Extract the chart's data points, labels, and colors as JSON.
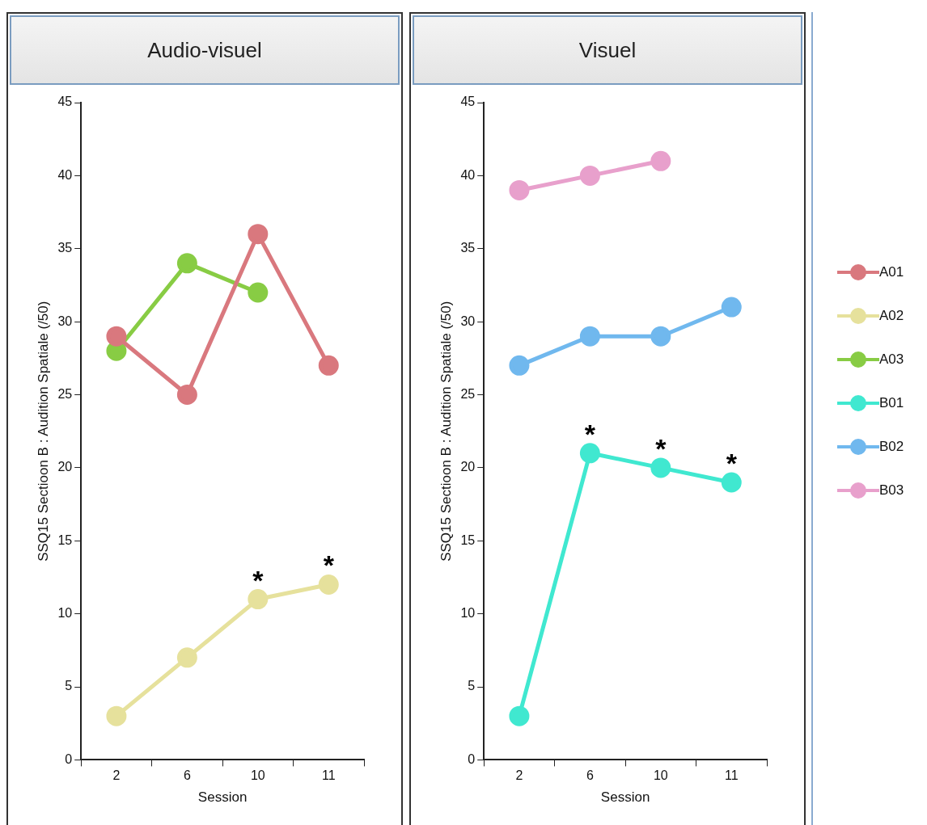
{
  "chart_data": [
    {
      "type": "line",
      "title": "Audio-visuel",
      "categories": [
        "2",
        "6",
        "10",
        "11"
      ],
      "xlabel": "Session",
      "ylabel": "SSQ15 Sectioon B : Audition Spatiale (/50)",
      "ylim": [
        0,
        45
      ],
      "yticks": [
        0,
        5,
        10,
        15,
        20,
        25,
        30,
        35,
        40,
        45
      ],
      "marker": "circle",
      "line_style": "solid",
      "grid": false,
      "legend": "right",
      "series": [
        {
          "name": "A01",
          "color": "#d9787e",
          "values": [
            29,
            25,
            36,
            27
          ]
        },
        {
          "name": "A02",
          "color": "#e6e19c",
          "values": [
            3,
            7,
            11,
            12
          ]
        },
        {
          "name": "A03",
          "color": "#88cc44",
          "values": [
            28,
            34,
            32,
            null
          ]
        }
      ],
      "annotations": [
        {
          "text": "*",
          "x": "10",
          "y": 11
        },
        {
          "text": "*",
          "x": "11",
          "y": 12
        }
      ]
    },
    {
      "type": "line",
      "title": "Visuel",
      "categories": [
        "2",
        "6",
        "10",
        "11"
      ],
      "xlabel": "Session",
      "ylabel": "SSQ15 Sectioon B : Audition Spatiale (/50)",
      "ylim": [
        0,
        45
      ],
      "yticks": [
        0,
        5,
        10,
        15,
        20,
        25,
        30,
        35,
        40,
        45
      ],
      "marker": "circle",
      "line_style": "solid",
      "grid": false,
      "legend": "right",
      "series": [
        {
          "name": "B01",
          "color": "#40e8d0",
          "values": [
            3,
            21,
            20,
            19
          ]
        },
        {
          "name": "B02",
          "color": "#70b8ee",
          "values": [
            27,
            29,
            29,
            31
          ]
        },
        {
          "name": "B03",
          "color": "#e8a0cc",
          "values": [
            39,
            40,
            41,
            null
          ]
        }
      ],
      "annotations": [
        {
          "text": "*",
          "x": "6",
          "y": 21
        },
        {
          "text": "*",
          "x": "10",
          "y": 20
        },
        {
          "text": "*",
          "x": "11",
          "y": 19
        }
      ]
    }
  ]
}
